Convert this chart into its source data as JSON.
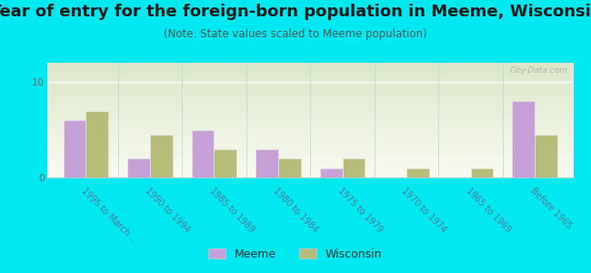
{
  "title": "Year of entry for the foreign-born population in Meeme, Wisconsin",
  "subtitle": "(Note: State values scaled to Meeme population)",
  "categories": [
    "1995 to March ...",
    "1990 to 1994",
    "1985 to 1989",
    "1980 to 1984",
    "1975 to 1979",
    "1970 to 1974",
    "1965 to 1969",
    "Before 1965"
  ],
  "meeme_values": [
    6.0,
    2.0,
    5.0,
    3.0,
    1.0,
    0.0,
    0.0,
    8.0
  ],
  "wisconsin_values": [
    7.0,
    4.5,
    3.0,
    2.0,
    2.0,
    1.0,
    1.0,
    4.5
  ],
  "meeme_color": "#c8a0d8",
  "wisconsin_color": "#b8bc7a",
  "background_outer": "#00e8f0",
  "ylim": [
    0,
    12
  ],
  "yticks": [
    0,
    10
  ],
  "bar_width": 0.35,
  "legend_meeme": "Meeme",
  "legend_wisconsin": "Wisconsin",
  "watermark": "City-Data.com",
  "title_fontsize": 13,
  "subtitle_fontsize": 8.5,
  "tick_label_color": "#557799",
  "tick_label_fontsize": 7.0
}
